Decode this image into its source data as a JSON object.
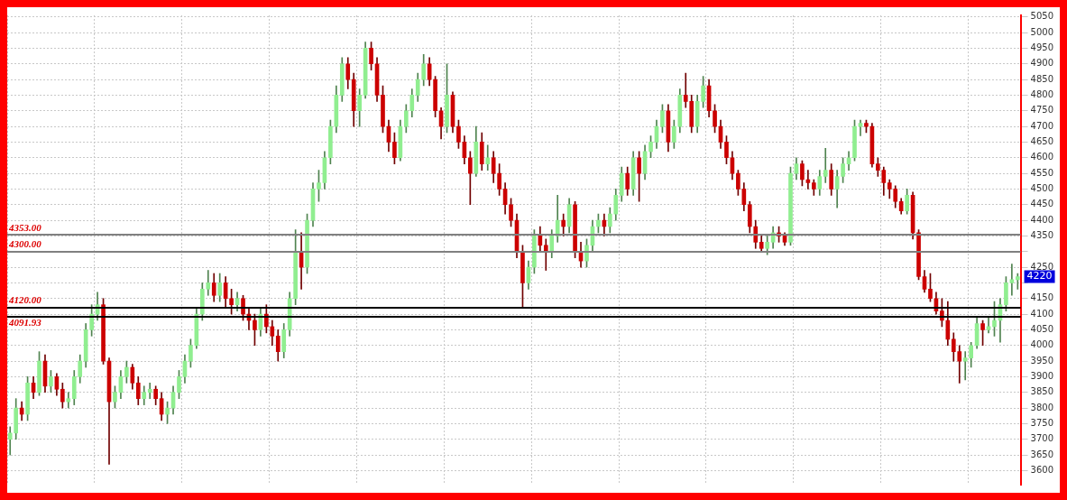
{
  "chart_data": {
    "type": "candlestick",
    "categories": [
      null,
      null,
      null,
      null,
      null,
      null,
      null,
      null,
      null,
      null,
      null,
      null,
      null,
      null,
      null,
      null,
      null,
      null,
      null,
      null,
      null,
      null,
      null,
      null,
      null,
      null,
      null,
      null,
      null,
      null,
      null,
      null,
      null,
      null,
      null,
      null,
      null,
      null,
      null,
      null,
      null,
      null,
      null,
      null,
      null,
      null,
      null,
      null,
      null,
      null,
      null,
      null,
      null,
      null,
      null,
      null,
      null,
      null,
      null,
      null,
      null,
      null,
      null,
      null,
      null,
      null,
      null,
      null,
      null,
      null,
      null,
      null,
      null,
      null,
      null,
      null,
      null,
      null,
      null,
      null,
      null,
      null,
      null,
      null,
      null,
      null,
      null,
      null,
      null,
      null,
      null,
      null,
      null,
      null,
      null,
      null,
      null,
      null,
      null,
      null,
      null,
      null,
      null,
      null,
      null,
      null,
      null,
      null,
      null,
      null,
      null,
      null,
      null,
      null,
      null,
      null,
      null,
      null,
      null,
      null,
      null,
      null,
      null,
      null,
      null,
      null,
      null,
      null,
      null,
      null,
      null,
      null,
      null,
      null,
      null,
      null,
      null,
      null,
      null,
      null,
      null,
      null,
      null,
      null,
      null,
      null,
      null,
      null,
      null,
      null,
      null,
      null,
      null,
      null,
      null,
      null,
      null,
      null,
      null,
      null,
      null,
      null,
      null,
      null,
      null,
      null,
      null,
      null,
      null,
      null,
      null,
      null,
      null,
      null
    ],
    "ohlc": [
      [
        3700,
        3740,
        3650,
        3720
      ],
      [
        3720,
        3830,
        3700,
        3800
      ],
      [
        3800,
        3820,
        3760,
        3780
      ],
      [
        3780,
        3900,
        3760,
        3880
      ],
      [
        3880,
        3900,
        3830,
        3850
      ],
      [
        3850,
        3980,
        3840,
        3950
      ],
      [
        3950,
        3970,
        3850,
        3870
      ],
      [
        3870,
        3920,
        3850,
        3900
      ],
      [
        3900,
        3910,
        3840,
        3860
      ],
      [
        3860,
        3880,
        3800,
        3820
      ],
      [
        3820,
        3850,
        3800,
        3830
      ],
      [
        3830,
        3920,
        3810,
        3900
      ],
      [
        3900,
        3970,
        3880,
        3950
      ],
      [
        3950,
        4070,
        3930,
        4050
      ],
      [
        4050,
        4130,
        4030,
        4100
      ],
      [
        4100,
        4170,
        4080,
        4130
      ],
      [
        4130,
        4150,
        3940,
        3950
      ],
      [
        3950,
        3960,
        3620,
        3820
      ],
      [
        3820,
        3870,
        3800,
        3850
      ],
      [
        3850,
        3920,
        3830,
        3900
      ],
      [
        3900,
        3950,
        3880,
        3930
      ],
      [
        3930,
        3940,
        3860,
        3880
      ],
      [
        3880,
        3900,
        3810,
        3830
      ],
      [
        3830,
        3870,
        3810,
        3850
      ],
      [
        3850,
        3880,
        3830,
        3860
      ],
      [
        3860,
        3870,
        3810,
        3830
      ],
      [
        3830,
        3850,
        3760,
        3780
      ],
      [
        3780,
        3820,
        3750,
        3800
      ],
      [
        3800,
        3870,
        3780,
        3850
      ],
      [
        3850,
        3920,
        3830,
        3900
      ],
      [
        3900,
        3970,
        3880,
        3950
      ],
      [
        3950,
        4020,
        3930,
        4000
      ],
      [
        4000,
        4120,
        3990,
        4100
      ],
      [
        4100,
        4200,
        4080,
        4180
      ],
      [
        4180,
        4240,
        4160,
        4200
      ],
      [
        4200,
        4230,
        4140,
        4160
      ],
      [
        4160,
        4230,
        4140,
        4200
      ],
      [
        4200,
        4220,
        4120,
        4150
      ],
      [
        4150,
        4180,
        4100,
        4130
      ],
      [
        4130,
        4170,
        4110,
        4150
      ],
      [
        4150,
        4160,
        4080,
        4100
      ],
      [
        4100,
        4120,
        4050,
        4080
      ],
      [
        4080,
        4100,
        4000,
        4050
      ],
      [
        4050,
        4120,
        4030,
        4100
      ],
      [
        4100,
        4130,
        4040,
        4060
      ],
      [
        4060,
        4080,
        4000,
        4030
      ],
      [
        4030,
        4050,
        3950,
        3980
      ],
      [
        3980,
        4070,
        3960,
        4050
      ],
      [
        4050,
        4170,
        4030,
        4150
      ],
      [
        4150,
        4370,
        4130,
        4300
      ],
      [
        4300,
        4360,
        4180,
        4250
      ],
      [
        4250,
        4420,
        4230,
        4400
      ],
      [
        4400,
        4520,
        4380,
        4500
      ],
      [
        4500,
        4560,
        4460,
        4520
      ],
      [
        4520,
        4620,
        4500,
        4600
      ],
      [
        4600,
        4720,
        4580,
        4700
      ],
      [
        4700,
        4830,
        4680,
        4800
      ],
      [
        4800,
        4920,
        4780,
        4900
      ],
      [
        4900,
        4920,
        4820,
        4850
      ],
      [
        4850,
        4870,
        4700,
        4750
      ],
      [
        4750,
        4820,
        4700,
        4800
      ],
      [
        4800,
        4970,
        4790,
        4950
      ],
      [
        4950,
        4970,
        4880,
        4900
      ],
      [
        4900,
        4920,
        4780,
        4800
      ],
      [
        4800,
        4830,
        4680,
        4700
      ],
      [
        4700,
        4720,
        4620,
        4650
      ],
      [
        4650,
        4680,
        4580,
        4600
      ],
      [
        4600,
        4720,
        4590,
        4700
      ],
      [
        4700,
        4770,
        4680,
        4750
      ],
      [
        4750,
        4820,
        4730,
        4800
      ],
      [
        4800,
        4870,
        4780,
        4850
      ],
      [
        4850,
        4930,
        4830,
        4900
      ],
      [
        4900,
        4920,
        4830,
        4850
      ],
      [
        4850,
        4860,
        4730,
        4750
      ],
      [
        4750,
        4760,
        4660,
        4700
      ],
      [
        4700,
        4900,
        4680,
        4800
      ],
      [
        4800,
        4810,
        4680,
        4700
      ],
      [
        4700,
        4720,
        4630,
        4650
      ],
      [
        4650,
        4670,
        4580,
        4600
      ],
      [
        4600,
        4620,
        4450,
        4550
      ],
      [
        4550,
        4700,
        4540,
        4650
      ],
      [
        4650,
        4680,
        4560,
        4580
      ],
      [
        4580,
        4640,
        4560,
        4600
      ],
      [
        4600,
        4620,
        4520,
        4550
      ],
      [
        4550,
        4580,
        4480,
        4500
      ],
      [
        4500,
        4520,
        4420,
        4450
      ],
      [
        4450,
        4470,
        4380,
        4400
      ],
      [
        4400,
        4420,
        4280,
        4300
      ],
      [
        4300,
        4320,
        4120,
        4200
      ],
      [
        4200,
        4270,
        4180,
        4250
      ],
      [
        4250,
        4370,
        4230,
        4350
      ],
      [
        4350,
        4380,
        4300,
        4320
      ],
      [
        4320,
        4340,
        4240,
        4300
      ],
      [
        4300,
        4370,
        4280,
        4350
      ],
      [
        4350,
        4480,
        4330,
        4400
      ],
      [
        4400,
        4420,
        4350,
        4380
      ],
      [
        4380,
        4470,
        4360,
        4450
      ],
      [
        4450,
        4460,
        4280,
        4300
      ],
      [
        4300,
        4330,
        4250,
        4270
      ],
      [
        4270,
        4340,
        4250,
        4320
      ],
      [
        4320,
        4400,
        4300,
        4380
      ],
      [
        4380,
        4420,
        4360,
        4400
      ],
      [
        4400,
        4420,
        4350,
        4380
      ],
      [
        4380,
        4440,
        4360,
        4420
      ],
      [
        4420,
        4500,
        4400,
        4480
      ],
      [
        4480,
        4570,
        4460,
        4550
      ],
      [
        4550,
        4570,
        4480,
        4500
      ],
      [
        4500,
        4620,
        4480,
        4600
      ],
      [
        4600,
        4620,
        4460,
        4550
      ],
      [
        4550,
        4640,
        4530,
        4620
      ],
      [
        4620,
        4670,
        4600,
        4650
      ],
      [
        4650,
        4720,
        4630,
        4700
      ],
      [
        4700,
        4770,
        4680,
        4750
      ],
      [
        4750,
        4770,
        4620,
        4650
      ],
      [
        4650,
        4720,
        4630,
        4700
      ],
      [
        4700,
        4820,
        4680,
        4800
      ],
      [
        4800,
        4870,
        4760,
        4780
      ],
      [
        4780,
        4800,
        4680,
        4700
      ],
      [
        4700,
        4800,
        4680,
        4780
      ],
      [
        4780,
        4860,
        4760,
        4830
      ],
      [
        4830,
        4850,
        4730,
        4750
      ],
      [
        4750,
        4770,
        4680,
        4700
      ],
      [
        4700,
        4720,
        4630,
        4650
      ],
      [
        4650,
        4670,
        4580,
        4600
      ],
      [
        4600,
        4620,
        4530,
        4550
      ],
      [
        4550,
        4560,
        4480,
        4500
      ],
      [
        4500,
        4520,
        4430,
        4450
      ],
      [
        4450,
        4460,
        4360,
        4380
      ],
      [
        4380,
        4400,
        4310,
        4330
      ],
      [
        4330,
        4350,
        4300,
        4310
      ],
      [
        4310,
        4350,
        4290,
        4330
      ],
      [
        4330,
        4380,
        4310,
        4360
      ],
      [
        4360,
        4380,
        4330,
        4350
      ],
      [
        4350,
        4360,
        4320,
        4330
      ],
      [
        4330,
        4570,
        4320,
        4550
      ],
      [
        4550,
        4600,
        4530,
        4580
      ],
      [
        4580,
        4590,
        4510,
        4530
      ],
      [
        4530,
        4560,
        4500,
        4520
      ],
      [
        4520,
        4530,
        4480,
        4500
      ],
      [
        4500,
        4560,
        4480,
        4540
      ],
      [
        4540,
        4630,
        4520,
        4560
      ],
      [
        4560,
        4580,
        4480,
        4500
      ],
      [
        4500,
        4560,
        4440,
        4540
      ],
      [
        4540,
        4600,
        4520,
        4580
      ],
      [
        4580,
        4620,
        4560,
        4600
      ],
      [
        4600,
        4720,
        4590,
        4700
      ],
      [
        4700,
        4720,
        4670,
        4710
      ],
      [
        4710,
        4720,
        4680,
        4700
      ],
      [
        4700,
        4710,
        4570,
        4580
      ],
      [
        4580,
        4600,
        4540,
        4560
      ],
      [
        4560,
        4570,
        4480,
        4520
      ],
      [
        4520,
        4530,
        4470,
        4500
      ],
      [
        4500,
        4510,
        4440,
        4460
      ],
      [
        4460,
        4470,
        4420,
        4430
      ],
      [
        4430,
        4500,
        4420,
        4480
      ],
      [
        4480,
        4490,
        4340,
        4360
      ],
      [
        4360,
        4370,
        4210,
        4220
      ],
      [
        4220,
        4240,
        4170,
        4180
      ],
      [
        4180,
        4230,
        4140,
        4150
      ],
      [
        4150,
        4170,
        4100,
        4110
      ],
      [
        4110,
        4150,
        4060,
        4080
      ],
      [
        4080,
        4140,
        4000,
        4020
      ],
      [
        4020,
        4040,
        3950,
        3980
      ],
      [
        3980,
        4000,
        3880,
        3950
      ],
      [
        3950,
        3980,
        3890,
        3960
      ],
      [
        3960,
        4010,
        3930,
        4000
      ],
      [
        4000,
        4090,
        3990,
        4070
      ],
      [
        4070,
        4080,
        4000,
        4050
      ],
      [
        4050,
        4090,
        4040,
        4060
      ],
      [
        4060,
        4140,
        4030,
        4080
      ],
      [
        4080,
        4150,
        4010,
        4130
      ],
      [
        4130,
        4220,
        4110,
        4200
      ],
      [
        4200,
        4260,
        4160,
        4210
      ],
      [
        4210,
        4230,
        4180,
        4220
      ]
    ],
    "colors": [
      "#90ee90",
      "#90ee90",
      "#cc0000",
      "#90ee90",
      "#cc0000",
      "#90ee90",
      "#cc0000",
      "#90ee90",
      "#cc0000",
      "#cc0000",
      "#90ee90",
      "#90ee90",
      "#90ee90",
      "#90ee90",
      "#90ee90",
      "#90ee90",
      "#cc0000",
      "#cc0000",
      "#90ee90",
      "#90ee90",
      "#90ee90",
      "#cc0000",
      "#cc0000",
      "#90ee90",
      "#90ee90",
      "#cc0000",
      "#cc0000",
      "#90ee90",
      "#90ee90",
      "#90ee90",
      "#90ee90",
      "#90ee90",
      "#90ee90",
      "#90ee90",
      "#90ee90",
      "#cc0000",
      "#90ee90",
      "#cc0000",
      "#cc0000",
      "#90ee90",
      "#cc0000",
      "#cc0000",
      "#cc0000",
      "#90ee90",
      "#cc0000",
      "#cc0000",
      "#cc0000",
      "#90ee90",
      "#90ee90",
      "#90ee90",
      "#cc0000",
      "#90ee90",
      "#90ee90",
      "#90ee90",
      "#90ee90",
      "#90ee90",
      "#90ee90",
      "#90ee90",
      "#cc0000",
      "#cc0000",
      "#90ee90",
      "#90ee90",
      "#cc0000",
      "#cc0000",
      "#cc0000",
      "#cc0000",
      "#cc0000",
      "#90ee90",
      "#90ee90",
      "#90ee90",
      "#90ee90",
      "#90ee90",
      "#cc0000",
      "#cc0000",
      "#cc0000",
      "#90ee90",
      "#cc0000",
      "#cc0000",
      "#cc0000",
      "#cc0000",
      "#90ee90",
      "#cc0000",
      "#90ee90",
      "#cc0000",
      "#cc0000",
      "#cc0000",
      "#cc0000",
      "#cc0000",
      "#cc0000",
      "#90ee90",
      "#90ee90",
      "#cc0000",
      "#cc0000",
      "#90ee90",
      "#90ee90",
      "#cc0000",
      "#90ee90",
      "#cc0000",
      "#cc0000",
      "#90ee90",
      "#90ee90",
      "#90ee90",
      "#cc0000",
      "#90ee90",
      "#90ee90",
      "#90ee90",
      "#cc0000",
      "#90ee90",
      "#cc0000",
      "#90ee90",
      "#90ee90",
      "#90ee90",
      "#90ee90",
      "#cc0000",
      "#90ee90",
      "#90ee90",
      "#cc0000",
      "#cc0000",
      "#90ee90",
      "#90ee90",
      "#cc0000",
      "#cc0000",
      "#cc0000",
      "#cc0000",
      "#cc0000",
      "#cc0000",
      "#cc0000",
      "#cc0000",
      "#cc0000",
      "#cc0000",
      "#90ee90",
      "#90ee90",
      "#cc0000",
      "#cc0000",
      "#90ee90",
      "#90ee90",
      "#cc0000",
      "#cc0000",
      "#cc0000",
      "#90ee90",
      "#90ee90",
      "#cc0000",
      "#90ee90",
      "#90ee90",
      "#90ee90",
      "#90ee90",
      "#90ee90",
      "#cc0000",
      "#cc0000",
      "#cc0000",
      "#cc0000",
      "#cc0000",
      "#cc0000",
      "#cc0000",
      "#90ee90",
      "#cc0000",
      "#cc0000",
      "#cc0000",
      "#cc0000",
      "#cc0000",
      "#cc0000",
      "#cc0000",
      "#cc0000",
      "#cc0000",
      "#90ee90",
      "#90ee90",
      "#90ee90",
      "#cc0000",
      "#90ee90",
      "#90ee90",
      "#90ee90",
      "#90ee90",
      "#90ee90",
      "#90ee90"
    ],
    "ylim": [
      3555,
      5055
    ],
    "yticks": [
      3600,
      3650,
      3700,
      3750,
      3800,
      3850,
      3900,
      3950,
      4000,
      4050,
      4100,
      4150,
      {
        "value": 4200,
        "label": null
      },
      4250,
      {
        "value": 4300,
        "label": null
      },
      4350,
      4400,
      4450,
      4500,
      4550,
      4600,
      4650,
      4700,
      4750,
      4800,
      4850,
      4900,
      4950,
      5000,
      5050
    ],
    "tick_labels": "y",
    "grid": true,
    "ref_lines": [
      {
        "axis": "y",
        "value": 4353,
        "label": "4353.00",
        "color": "#808080"
      },
      {
        "axis": "y",
        "value": 4300,
        "label": "4300.00",
        "color": "#808080"
      },
      {
        "axis": "y",
        "value": 4120,
        "label": "4120.00",
        "color": "#000000"
      },
      {
        "axis": "y",
        "value": 4091.93,
        "label": "4091.93",
        "color": "#000000"
      }
    ],
    "annotations": [
      "4220"
    ]
  }
}
